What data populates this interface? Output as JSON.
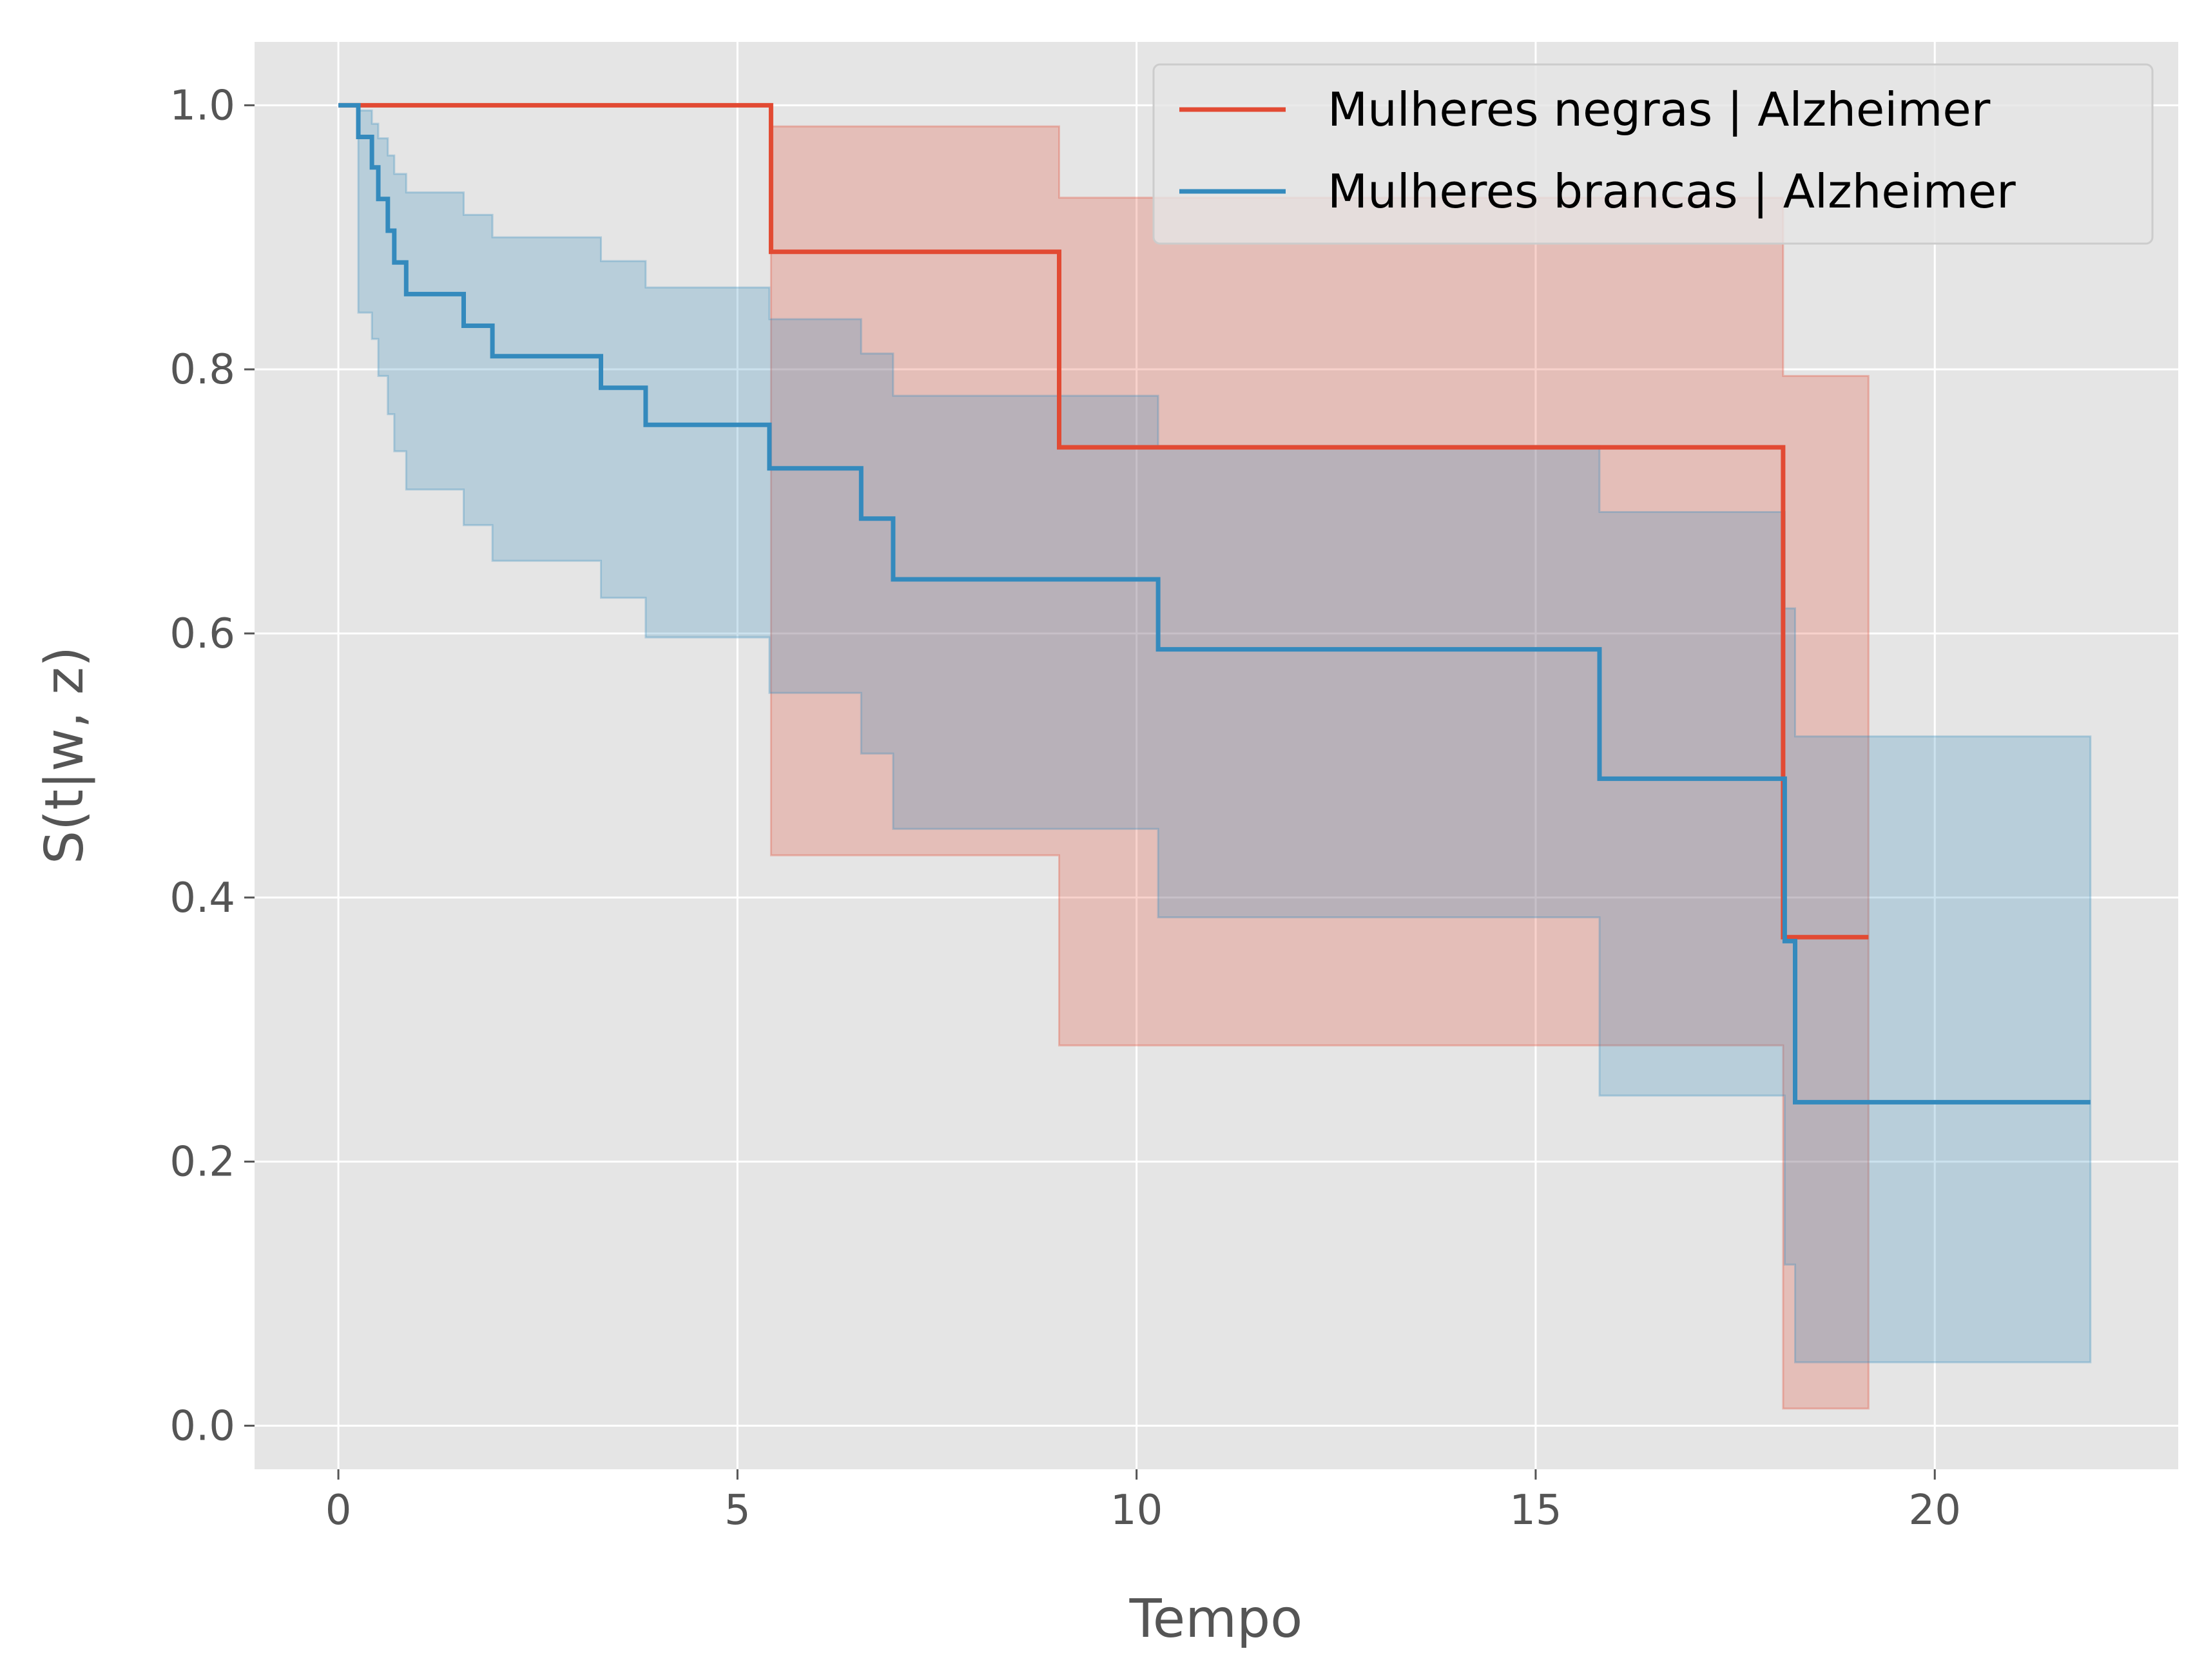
{
  "chart_data": {
    "type": "line",
    "subtype": "step",
    "title": "",
    "xlabel": "Tempo",
    "ylabel": "S(t|w, z)",
    "xlim": [
      -1.05,
      23.05
    ],
    "ylim": [
      -0.033,
      1.048
    ],
    "xticks": [
      0,
      5,
      10,
      15,
      20
    ],
    "xtick_labels": [
      "0",
      "5",
      "10",
      "15",
      "20"
    ],
    "yticks": [
      0.0,
      0.2,
      0.4,
      0.6,
      0.8,
      1.0
    ],
    "ytick_labels": [
      "0.0",
      "0.2",
      "0.4",
      "0.6",
      "0.8",
      "1.0"
    ],
    "grid": true,
    "background": "#e5e5e5",
    "legend_position": "top-right",
    "series": [
      {
        "name": "Mulheres negras | Alzheimer",
        "color": "#e24a33",
        "x": [
          0,
          5.42,
          9.03,
          18.1,
          18.23,
          19.17
        ],
        "y": [
          1.0,
          0.889,
          0.741,
          0.37,
          0.37,
          0.37
        ],
        "ci_x": [
          5.42,
          9.03,
          18.1,
          18.23,
          19.17
        ],
        "ci_lower": [
          0.432,
          0.288,
          0.013,
          0.013,
          0.013
        ],
        "ci_upper": [
          0.984,
          0.93,
          0.795,
          0.795,
          0.795
        ]
      },
      {
        "name": "Mulheres brancas | Alzheimer",
        "color": "#348abd",
        "x": [
          0,
          0.25,
          0.42,
          0.5,
          0.62,
          0.7,
          0.85,
          1.57,
          1.93,
          3.29,
          3.85,
          5.4,
          6.55,
          6.95,
          10.27,
          15.8,
          18.12,
          18.25,
          21.95
        ],
        "y": [
          1.0,
          0.976,
          0.953,
          0.929,
          0.905,
          0.881,
          0.857,
          0.833,
          0.81,
          0.786,
          0.758,
          0.725,
          0.687,
          0.641,
          0.588,
          0.49,
          0.367,
          0.245,
          0.245
        ],
        "ci_x": [
          0,
          0.25,
          0.42,
          0.5,
          0.62,
          0.7,
          0.85,
          1.57,
          1.93,
          3.29,
          3.85,
          5.4,
          6.55,
          6.95,
          10.27,
          15.8,
          18.12,
          18.25,
          21.95
        ],
        "ci_lower": [
          1.0,
          0.843,
          0.823,
          0.795,
          0.766,
          0.738,
          0.709,
          0.682,
          0.655,
          0.627,
          0.597,
          0.555,
          0.509,
          0.452,
          0.385,
          0.25,
          0.122,
          0.048,
          0.048
        ],
        "ci_upper": [
          1.0,
          0.996,
          0.986,
          0.975,
          0.962,
          0.948,
          0.934,
          0.917,
          0.9,
          0.882,
          0.862,
          0.838,
          0.812,
          0.78,
          0.742,
          0.692,
          0.619,
          0.522,
          0.522
        ]
      }
    ]
  }
}
